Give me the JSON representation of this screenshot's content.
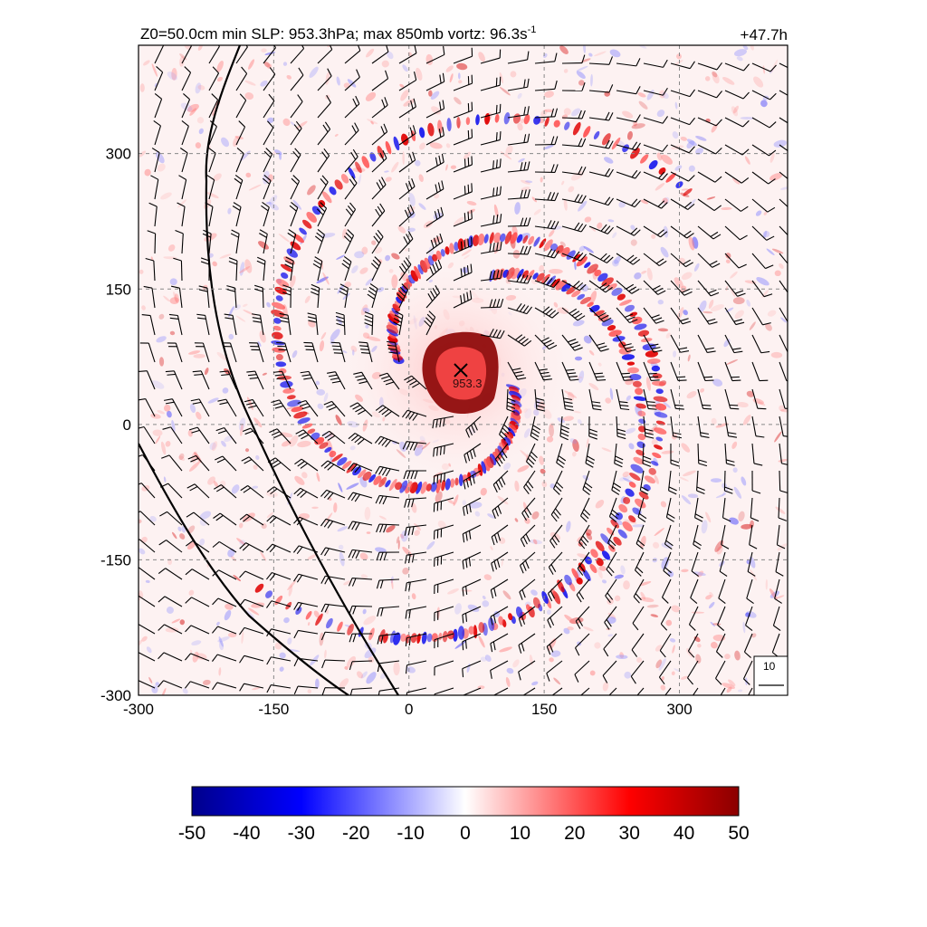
{
  "header": {
    "title_main": "Z0=50.0cm  min SLP: 953.3hPa; max 850mb vortz:  96.3s",
    "title_exp": "-1",
    "time_label": "+47.7h"
  },
  "chart_data": {
    "type": "heatmap",
    "title": "Z0=50.0cm  min SLP: 953.3hPa; max 850mb vortz:  96.3s-1",
    "time": "+47.7h",
    "x_ticks": [
      "-300",
      "-150",
      "0",
      "150",
      "300"
    ],
    "y_ticks": [
      "300",
      "150",
      "0",
      "-150",
      "-300"
    ],
    "xlim": [
      -300,
      420
    ],
    "ylim": [
      -300,
      420
    ],
    "grid": true,
    "grid_style": "dashed",
    "storm_center": {
      "x": 58,
      "y": 60,
      "marker": "x",
      "label": "953.3"
    },
    "colorbar": {
      "orientation": "horizontal",
      "ticks": [
        "-50",
        "-40",
        "-30",
        "-20",
        "-10",
        "0",
        "10",
        "20",
        "30",
        "40",
        "50"
      ],
      "range": [
        -50,
        50
      ],
      "colors": [
        "#00008b",
        "#0000ff",
        "#ffffff",
        "#ff0000",
        "#8b0000"
      ]
    },
    "wind_barb_reference": {
      "label": "10"
    },
    "coastlines": 2
  }
}
